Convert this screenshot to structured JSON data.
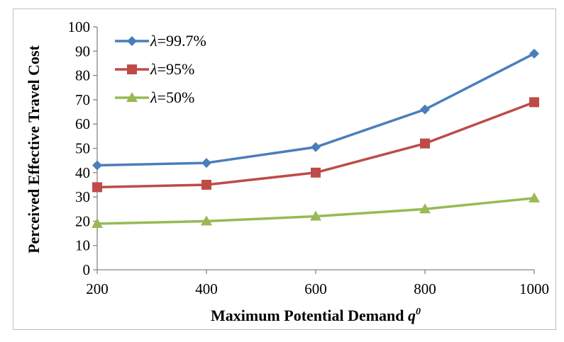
{
  "chart_data": {
    "type": "line",
    "x": [
      200,
      400,
      600,
      800,
      1000
    ],
    "series": [
      {
        "name": "λ=99.7%",
        "legend_symbol": "λ",
        "legend_suffix": "=99.7%",
        "color": "#4a7ebb",
        "marker": "diamond",
        "values": [
          43,
          44,
          50.5,
          66,
          89
        ]
      },
      {
        "name": "λ=95%",
        "legend_symbol": "λ",
        "legend_suffix": "=95%",
        "color": "#be4b48",
        "marker": "square",
        "values": [
          34,
          35,
          40,
          52,
          69
        ]
      },
      {
        "name": "λ=50%",
        "legend_symbol": "λ",
        "legend_suffix": "=50%",
        "color": "#98b954",
        "marker": "triangle",
        "values": [
          19,
          20,
          22,
          25,
          29.5
        ]
      }
    ],
    "xlabel": "Maximum Potential Demand",
    "xlabel_var": "q",
    "xlabel_sup": "0",
    "ylabel": "Perceived Effective Travel Cost",
    "ylim": [
      0,
      100
    ],
    "yticks": [
      0,
      10,
      20,
      30,
      40,
      50,
      60,
      70,
      80,
      90,
      100
    ],
    "xticks": [
      200,
      400,
      600,
      800,
      1000
    ],
    "grid": false,
    "legend_position": "top-left"
  }
}
